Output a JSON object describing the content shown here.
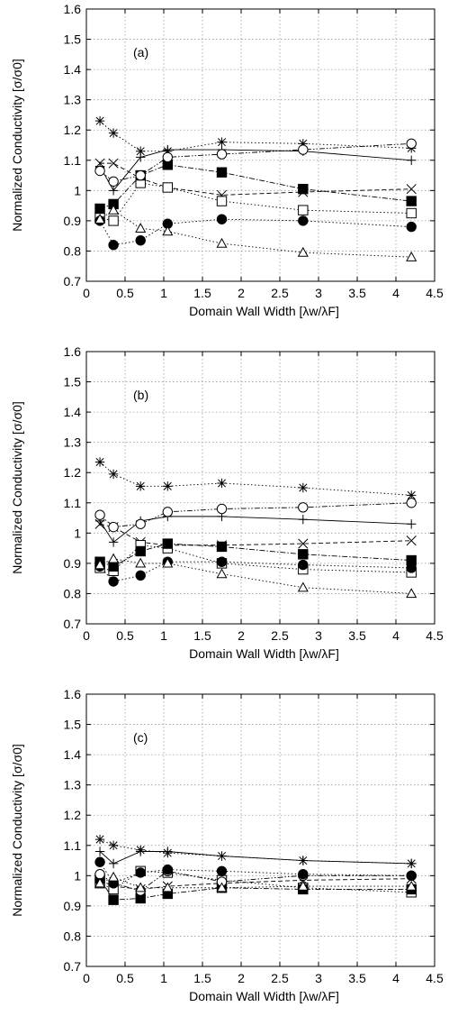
{
  "chart_data": [
    {
      "type": "line",
      "panel_label": "(a)",
      "xlabel": "Domain Wall Width [λw/λF]",
      "ylabel": "Normalized Conductivity [σ/σ0]",
      "xlim": [
        0,
        4.5
      ],
      "ylim": [
        0.7,
        1.6
      ],
      "xticks": [
        "0",
        "0.5",
        "1",
        "1.5",
        "2",
        "2.5",
        "3",
        "3.5",
        "4",
        "4.5"
      ],
      "yticks": [
        "0.7",
        "0.8",
        "0.9",
        "1",
        "1.1",
        "1.2",
        "1.3",
        "1.4",
        "1.5",
        "1.6"
      ],
      "grid": true,
      "x": [
        0.175,
        0.35,
        0.7,
        1.05,
        1.75,
        2.8,
        4.2
      ],
      "series": [
        {
          "marker": "plus",
          "dash": "solid",
          "values": [
            1.08,
            1.0,
            1.11,
            1.135,
            1.135,
            1.13,
            1.1
          ]
        },
        {
          "marker": "cross",
          "dash": "dashed",
          "values": [
            1.09,
            1.09,
            1.04,
            1.01,
            0.985,
            0.995,
            1.005
          ]
        },
        {
          "marker": "star",
          "dash": "dotted",
          "values": [
            1.23,
            1.19,
            1.13,
            1.13,
            1.16,
            1.155,
            1.14
          ]
        },
        {
          "marker": "open-square",
          "dash": "dotted",
          "values": [
            0.91,
            0.9,
            1.025,
            1.01,
            0.965,
            0.935,
            0.925
          ]
        },
        {
          "marker": "filled-square",
          "dash": "dashdot",
          "values": [
            0.94,
            0.955,
            1.05,
            1.085,
            1.06,
            1.005,
            0.965
          ]
        },
        {
          "marker": "open-circle",
          "dash": "dashdotdot",
          "values": [
            1.065,
            1.03,
            1.05,
            1.11,
            1.12,
            1.135,
            1.155
          ]
        },
        {
          "marker": "filled-circle",
          "dash": "dotted",
          "values": [
            0.9,
            0.82,
            0.835,
            0.89,
            0.905,
            0.9,
            0.88
          ]
        },
        {
          "marker": "open-triangle",
          "dash": "dotted",
          "values": [
            0.905,
            0.935,
            0.875,
            0.865,
            0.825,
            0.795,
            0.78
          ]
        }
      ]
    },
    {
      "type": "line",
      "panel_label": "(b)",
      "xlabel": "Domain Wall Width [λw/λF]",
      "ylabel": "Normalized Conductivity [σ/σ0]",
      "xlim": [
        0,
        4.5
      ],
      "ylim": [
        0.7,
        1.6
      ],
      "xticks": [
        "0",
        "0.5",
        "1",
        "1.5",
        "2",
        "2.5",
        "3",
        "3.5",
        "4",
        "4.5"
      ],
      "yticks": [
        "0.7",
        "0.8",
        "0.9",
        "1",
        "1.1",
        "1.2",
        "1.3",
        "1.4",
        "1.5",
        "1.6"
      ],
      "grid": true,
      "x": [
        0.175,
        0.35,
        0.7,
        1.05,
        1.75,
        2.8,
        4.2
      ],
      "series": [
        {
          "marker": "plus",
          "dash": "solid",
          "values": [
            1.04,
            0.97,
            1.04,
            1.055,
            1.055,
            1.045,
            1.03
          ]
        },
        {
          "marker": "cross",
          "dash": "dashed",
          "values": [
            1.03,
            1.02,
            0.97,
            0.96,
            0.96,
            0.965,
            0.975
          ]
        },
        {
          "marker": "star",
          "dash": "dotted",
          "values": [
            1.235,
            1.195,
            1.155,
            1.155,
            1.165,
            1.15,
            1.125
          ]
        },
        {
          "marker": "open-square",
          "dash": "dotted",
          "values": [
            0.885,
            0.875,
            0.96,
            0.95,
            0.9,
            0.88,
            0.87
          ]
        },
        {
          "marker": "filled-square",
          "dash": "dashdot",
          "values": [
            0.905,
            0.89,
            0.94,
            0.965,
            0.955,
            0.93,
            0.91
          ]
        },
        {
          "marker": "open-circle",
          "dash": "dashdotdot",
          "values": [
            1.06,
            1.02,
            1.03,
            1.07,
            1.08,
            1.085,
            1.1
          ]
        },
        {
          "marker": "filled-circle",
          "dash": "dotted",
          "values": [
            0.89,
            0.84,
            0.86,
            0.905,
            0.905,
            0.895,
            0.885
          ]
        },
        {
          "marker": "open-triangle",
          "dash": "dotted",
          "values": [
            0.895,
            0.915,
            0.9,
            0.9,
            0.865,
            0.82,
            0.8
          ]
        }
      ]
    },
    {
      "type": "line",
      "panel_label": "(c)",
      "xlabel": "Domain Wall Width [λw/λF]",
      "ylabel": "Normalized Conductivity [σ/σ0]",
      "xlim": [
        0,
        4.5
      ],
      "ylim": [
        0.7,
        1.6
      ],
      "xticks": [
        "0",
        "0.5",
        "1",
        "1.5",
        "2",
        "2.5",
        "3",
        "3.5",
        "4",
        "4.5"
      ],
      "yticks": [
        "0.7",
        "0.8",
        "0.9",
        "1",
        "1.1",
        "1.2",
        "1.3",
        "1.4",
        "1.5",
        "1.6"
      ],
      "grid": true,
      "x": [
        0.175,
        0.35,
        0.7,
        1.05,
        1.75,
        2.8,
        4.2
      ],
      "series": [
        {
          "marker": "plus",
          "dash": "solid",
          "values": [
            1.08,
            1.04,
            1.08,
            1.08,
            1.065,
            1.05,
            1.04
          ]
        },
        {
          "marker": "cross",
          "dash": "dashed",
          "values": [
            0.985,
            0.965,
            0.955,
            0.965,
            0.975,
            0.985,
            0.99
          ]
        },
        {
          "marker": "star",
          "dash": "dotted",
          "values": [
            1.12,
            1.1,
            1.085,
            1.075,
            1.065,
            1.05,
            1.04
          ]
        },
        {
          "marker": "open-square",
          "dash": "dotted",
          "values": [
            0.975,
            0.955,
            1.015,
            1.01,
            0.985,
            0.96,
            0.945
          ]
        },
        {
          "marker": "filled-square",
          "dash": "dashdot",
          "values": [
            0.99,
            0.92,
            0.925,
            0.94,
            0.96,
            0.955,
            0.955
          ]
        },
        {
          "marker": "open-circle",
          "dash": "dashdotdot",
          "values": [
            1.005,
            0.975,
            0.95,
            1.015,
            0.98,
            1.0,
            1.0
          ]
        },
        {
          "marker": "filled-circle",
          "dash": "dotted",
          "values": [
            1.045,
            0.975,
            1.01,
            1.02,
            1.015,
            1.005,
            1.0
          ]
        },
        {
          "marker": "open-triangle",
          "dash": "dotted",
          "values": [
            0.975,
            0.995,
            0.96,
            0.96,
            0.96,
            0.965,
            0.965
          ]
        }
      ]
    }
  ]
}
